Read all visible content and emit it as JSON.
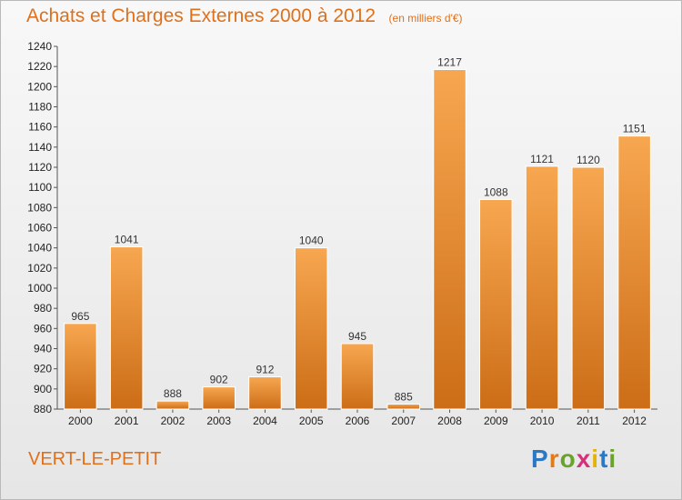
{
  "header": {
    "title": "Achats et Charges Externes 2000 à 2012",
    "unit": "(en milliers d'€)"
  },
  "footer": {
    "commune": "VERT-LE-PETIT",
    "logo_letters": [
      "P",
      "r",
      "o",
      "x",
      "i",
      "t",
      "i"
    ],
    "logo_colors": [
      "#2b78c5",
      "#e07b1a",
      "#6aa32c",
      "#d6317a",
      "#e6b400",
      "#2b78c5",
      "#6aa32c"
    ]
  },
  "colors": {
    "bar_light": "#f7a750",
    "bar_dark": "#cc6d17",
    "accent": "#e0701a"
  },
  "chart_data": {
    "type": "bar",
    "categories": [
      "2000",
      "2001",
      "2002",
      "2003",
      "2004",
      "2005",
      "2006",
      "2007",
      "2008",
      "2009",
      "2010",
      "2011",
      "2012"
    ],
    "values": [
      965,
      1041,
      888,
      902,
      912,
      1040,
      945,
      885,
      1217,
      1088,
      1121,
      1120,
      1151
    ],
    "ylim": [
      880,
      1240
    ],
    "yticks": [
      880,
      900,
      920,
      940,
      960,
      980,
      1000,
      1020,
      1040,
      1060,
      1080,
      1100,
      1120,
      1140,
      1160,
      1180,
      1200,
      1220,
      1240
    ],
    "grid": false
  }
}
